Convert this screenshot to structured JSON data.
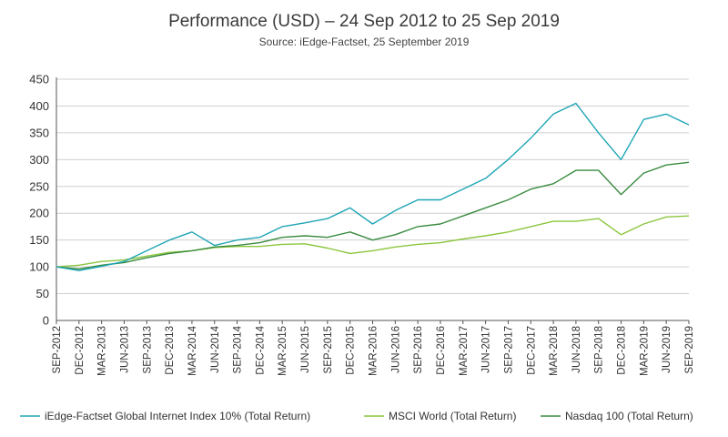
{
  "chart_data": {
    "type": "line",
    "title": "Performance (USD) – 24 Sep 2012 to 25 Sep 2019",
    "subtitle": "Source: iEdge-Factset, 25 September 2019",
    "xlabel": "",
    "ylabel": "",
    "ylim": [
      0,
      450
    ],
    "yticks": [
      0,
      50,
      100,
      150,
      200,
      250,
      300,
      350,
      400,
      450
    ],
    "grid": "horizontal",
    "legend_position": "bottom",
    "categories": [
      "SEP-2012",
      "DEC-2012",
      "MAR-2013",
      "JUN-2013",
      "SEP-2013",
      "DEC-2013",
      "MAR-2014",
      "JUN-2014",
      "SEP-2014",
      "DEC-2014",
      "MAR-2015",
      "JUN-2015",
      "SEP-2015",
      "DEC-2015",
      "MAR-2016",
      "JUN-2016",
      "SEP-2016",
      "DEC-2016",
      "MAR-2017",
      "JUN-2017",
      "SEP-2017",
      "DEC-2017",
      "MAR-2018",
      "JUN-2018",
      "SEP-2018",
      "DEC-2018",
      "MAR-2019",
      "JUN-2019",
      "SEP-2019"
    ],
    "series": [
      {
        "name": "iEdge-Factset Global Internet Index 10% (Total Return)",
        "color": "#1ea5b5",
        "values": [
          100,
          93,
          101,
          110,
          130,
          150,
          165,
          140,
          150,
          155,
          175,
          182,
          190,
          210,
          180,
          205,
          225,
          225,
          245,
          265,
          300,
          340,
          385,
          405,
          350,
          300,
          375,
          385,
          365
        ]
      },
      {
        "name": "MSCI World (Total Return)",
        "color": "#8cc63f",
        "values": [
          100,
          103,
          110,
          113,
          120,
          127,
          130,
          136,
          138,
          138,
          142,
          143,
          135,
          125,
          130,
          137,
          142,
          145,
          152,
          158,
          165,
          175,
          185,
          185,
          190,
          160,
          180,
          193,
          195
        ]
      },
      {
        "name": "Nasdaq 100 (Total Return)",
        "color": "#3a8b3f",
        "values": [
          100,
          96,
          103,
          108,
          117,
          125,
          130,
          137,
          140,
          145,
          155,
          158,
          155,
          165,
          150,
          160,
          175,
          180,
          195,
          210,
          225,
          245,
          255,
          280,
          280,
          235,
          275,
          290,
          295
        ]
      }
    ]
  }
}
